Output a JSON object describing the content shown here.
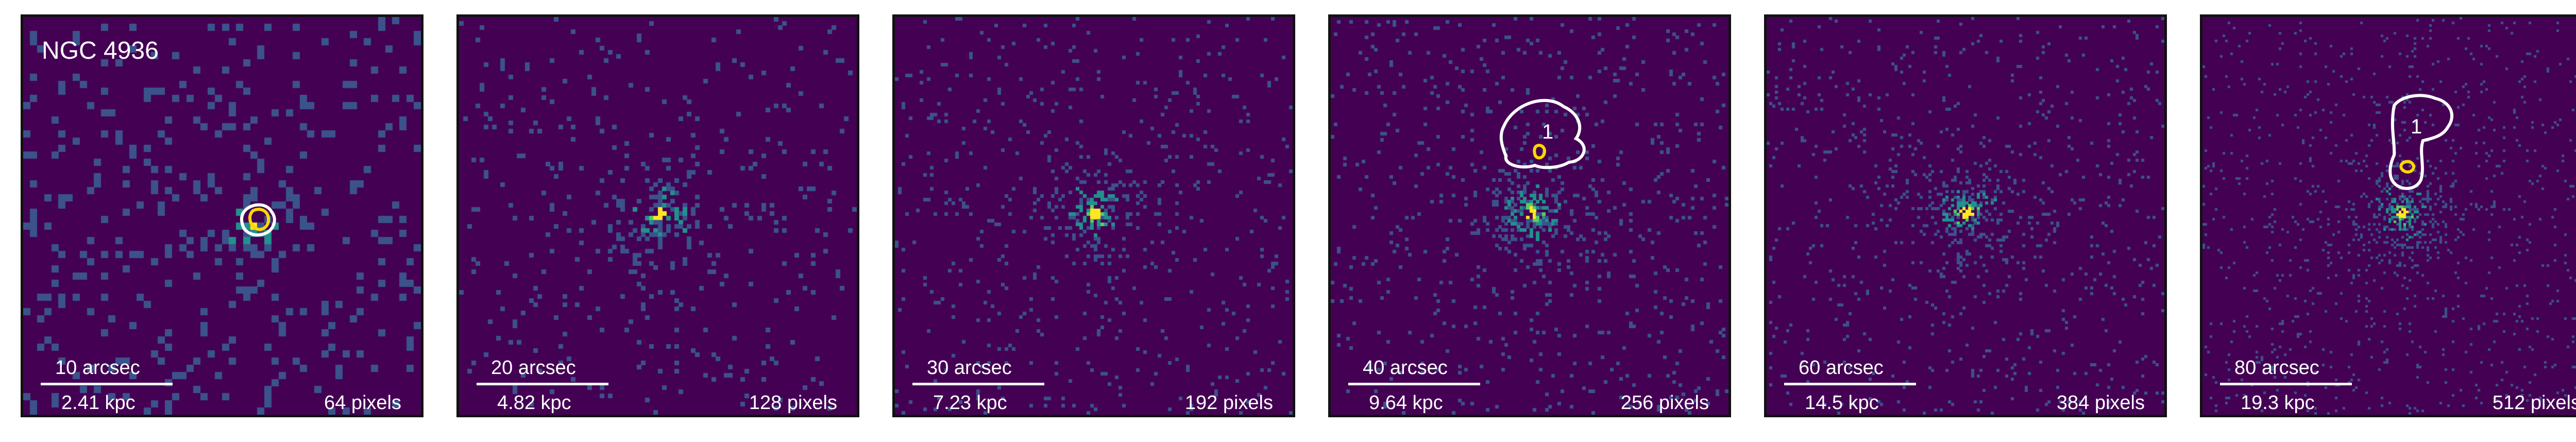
{
  "figure": {
    "galaxy_name": "NGC 4936",
    "colors": {
      "background": "#440154",
      "low": "#3b528b",
      "mid": "#21918c",
      "high": "#5ec962",
      "peak": "#fde725",
      "contour_outer": "#ffffff",
      "contour_inner": "#ffd700",
      "frame": "#111111"
    },
    "panels": [
      {
        "angular_scale": "10 arcsec",
        "physical_scale": "2.41 kpc",
        "pixel_size": "64 pixels",
        "source_label": ""
      },
      {
        "angular_scale": "20 arcsec",
        "physical_scale": "4.82 kpc",
        "pixel_size": "128 pixels",
        "source_label": ""
      },
      {
        "angular_scale": "30 arcsec",
        "physical_scale": "7.23 kpc",
        "pixel_size": "192 pixels",
        "source_label": ""
      },
      {
        "angular_scale": "40 arcsec",
        "physical_scale": "9.64 kpc",
        "pixel_size": "256 pixels",
        "source_label": "1"
      },
      {
        "angular_scale": "60 arcsec",
        "physical_scale": "14.5 kpc",
        "pixel_size": "384 pixels",
        "source_label": ""
      },
      {
        "angular_scale": "80 arcsec",
        "physical_scale": "19.3 kpc",
        "pixel_size": "512 pixels",
        "source_label": "1"
      }
    ]
  }
}
